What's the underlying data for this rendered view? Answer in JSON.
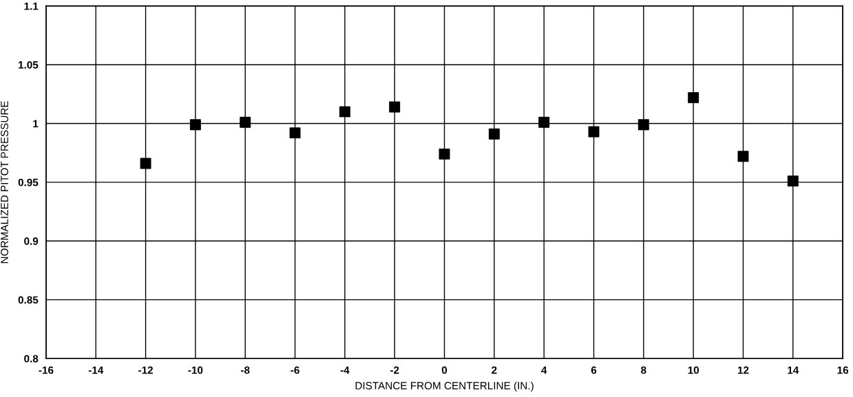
{
  "chart_data": {
    "type": "scatter",
    "xlabel": "DISTANCE FROM CENTERLINE (IN.)",
    "ylabel": "NORMALIZED PITOT PRESSURE",
    "x": [
      -12,
      -10,
      -8,
      -6,
      -4,
      -2,
      0,
      2,
      4,
      6,
      8,
      10,
      12,
      14
    ],
    "series": [
      {
        "color": "#000000",
        "values": [
          0.966,
          0.999,
          1.001,
          0.992,
          1.01,
          1.014,
          0.974,
          0.991,
          1.001,
          0.993,
          0.999,
          1.022,
          0.972,
          0.951
        ]
      }
    ],
    "marker": "square",
    "xlim": [
      -16,
      16
    ],
    "xticks": [
      -16,
      -14,
      -12,
      -10,
      -8,
      -6,
      -4,
      -2,
      0,
      2,
      4,
      6,
      8,
      10,
      12,
      14,
      16
    ],
    "ylim": [
      0.8,
      1.1
    ],
    "yticks": [
      0.8,
      0.85,
      0.9,
      0.95,
      1,
      1.05,
      1.1
    ],
    "grid": true
  }
}
